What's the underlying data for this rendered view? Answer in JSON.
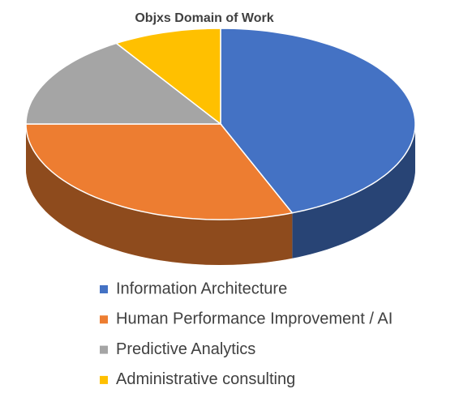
{
  "chart_data": {
    "type": "pie",
    "title": "Objxs Domain of Work",
    "categories": [
      "Information Architecture",
      "Human Performance Improvement / AI",
      "Predictive Analytics",
      "Administrative consulting"
    ],
    "values": [
      44,
      31,
      16,
      9
    ],
    "colors": [
      "#4472c4",
      "#ed7d31",
      "#a5a5a5",
      "#ffc000"
    ]
  }
}
